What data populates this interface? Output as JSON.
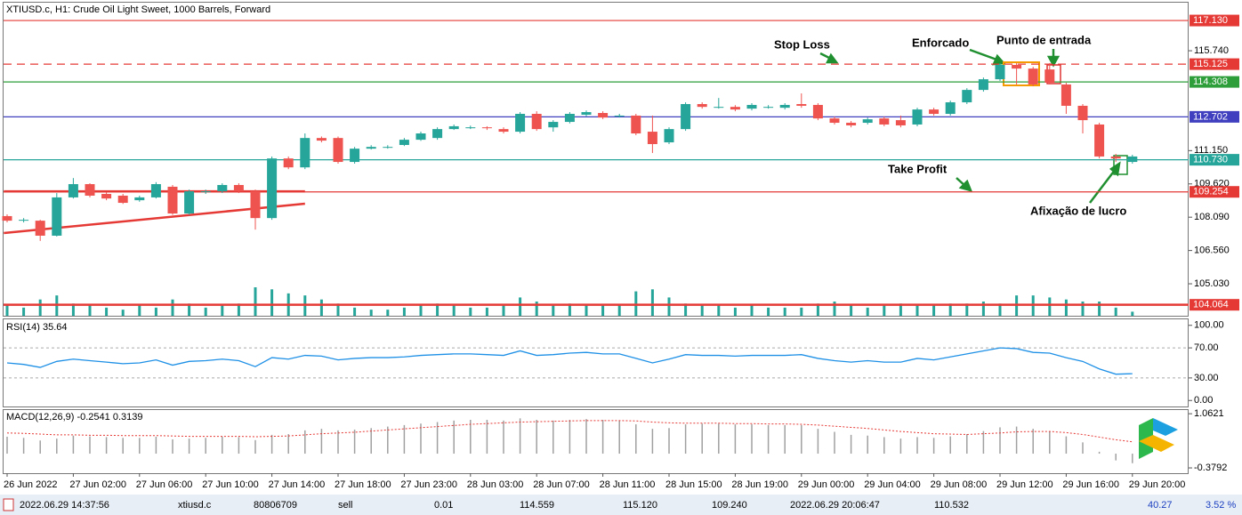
{
  "chart_data": [
    {
      "type": "candlestick",
      "title": "XTIUSD.c, H1:  Crude Oil Light Sweet, 1000 Barrels, Forward",
      "categories": [
        "26 Jun 2022",
        null,
        null,
        null,
        "27 Jun 02:00",
        null,
        null,
        null,
        "27 Jun 06:00",
        null,
        null,
        null,
        "27 Jun 10:00",
        null,
        null,
        null,
        "27 Jun 14:00",
        null,
        null,
        null,
        "27 Jun 18:00",
        null,
        null,
        null,
        "27 Jun 23:00",
        null,
        null,
        null,
        "28 Jun 03:00",
        null,
        null,
        null,
        "28 Jun 07:00",
        null,
        null,
        null,
        "28 Jun 11:00",
        null,
        null,
        null,
        "28 Jun 15:00",
        null,
        null,
        null,
        "28 Jun 19:00",
        null,
        null,
        null,
        "29 Jun 00:00",
        null,
        null,
        null,
        "29 Jun 04:00",
        null,
        null,
        null,
        "29 Jun 08:00",
        null,
        null,
        null,
        "29 Jun 12:00",
        null,
        null,
        null,
        "29 Jun 16:00",
        null,
        null,
        null,
        "29 Jun 20:00"
      ],
      "open": [
        108.14,
        107.93,
        107.93,
        107.24,
        109.0,
        109.61,
        109.16,
        109.08,
        108.87,
        109.0,
        109.49,
        108.26,
        109.24,
        109.28,
        109.57,
        109.28,
        108.05,
        110.79,
        110.38,
        111.73,
        111.73,
        110.63,
        111.24,
        111.32,
        111.41,
        111.65,
        111.73,
        112.14,
        112.22,
        112.22,
        112.14,
        112.02,
        112.84,
        112.22,
        112.47,
        112.8,
        112.88,
        112.76,
        112.76,
        112.02,
        111.53,
        112.14,
        113.29,
        113.16,
        113.16,
        113.08,
        113.16,
        113.12,
        113.29,
        113.25,
        112.63,
        112.43,
        112.43,
        112.63,
        112.55,
        112.35,
        113.04,
        112.84,
        113.37,
        113.94,
        114.43,
        115.09,
        114.92,
        114.88,
        114.19,
        113.21,
        112.35,
        110.88,
        110.63
      ],
      "high": [
        108.22,
        108.05,
        107.97,
        109.2,
        109.89,
        109.65,
        109.24,
        109.16,
        109.08,
        109.7,
        109.57,
        109.36,
        109.36,
        109.65,
        109.65,
        109.36,
        110.88,
        110.88,
        111.94,
        111.8,
        111.8,
        111.32,
        111.4,
        111.4,
        111.73,
        112.02,
        112.22,
        112.35,
        112.3,
        112.27,
        112.22,
        112.92,
        112.96,
        112.55,
        112.92,
        113.0,
        112.96,
        112.84,
        112.84,
        112.76,
        112.22,
        113.37,
        113.37,
        113.57,
        113.24,
        113.33,
        113.24,
        113.33,
        113.78,
        113.33,
        112.71,
        112.51,
        112.67,
        112.71,
        112.76,
        113.12,
        113.12,
        113.45,
        114.02,
        114.51,
        115.17,
        115.17,
        115.0,
        115.17,
        114.27,
        113.29,
        112.43,
        111.0,
        110.96
      ],
      "low": [
        107.85,
        107.85,
        107.0,
        107.2,
        108.95,
        109.0,
        108.87,
        108.7,
        108.8,
        108.95,
        108.2,
        108.2,
        109.16,
        109.2,
        109.2,
        107.52,
        107.97,
        110.3,
        110.3,
        111.53,
        110.55,
        110.55,
        111.2,
        111.24,
        111.36,
        111.6,
        111.65,
        112.1,
        112.14,
        112.1,
        111.94,
        111.94,
        112.06,
        112.02,
        112.4,
        112.72,
        112.6,
        112.67,
        111.86,
        111.04,
        111.45,
        112.06,
        113.08,
        113.08,
        112.96,
        113.0,
        113.08,
        113.04,
        113.12,
        112.55,
        112.35,
        112.22,
        112.35,
        112.27,
        112.22,
        112.27,
        112.76,
        112.76,
        113.29,
        113.86,
        114.35,
        114.19,
        114.11,
        114.19,
        112.84,
        111.94,
        110.79,
        110.63,
        110.55
      ],
      "close": [
        107.93,
        107.97,
        107.24,
        109.0,
        109.61,
        109.08,
        108.95,
        108.75,
        109.0,
        109.61,
        108.26,
        109.28,
        109.28,
        109.57,
        109.28,
        108.05,
        110.79,
        110.38,
        111.73,
        111.61,
        110.63,
        111.24,
        111.32,
        111.32,
        111.65,
        111.94,
        112.14,
        112.27,
        112.22,
        112.18,
        112.02,
        112.84,
        112.14,
        112.47,
        112.84,
        112.92,
        112.67,
        112.76,
        111.94,
        111.45,
        112.14,
        113.29,
        113.16,
        113.16,
        113.04,
        113.25,
        113.16,
        113.25,
        113.21,
        112.63,
        112.43,
        112.31,
        112.59,
        112.35,
        112.31,
        113.04,
        112.84,
        113.37,
        113.94,
        114.43,
        115.09,
        114.92,
        114.19,
        114.27,
        113.21,
        112.55,
        110.88,
        110.79,
        110.88
      ],
      "volume": [
        5,
        4,
        8,
        10,
        6,
        5,
        4,
        3,
        5,
        4,
        8,
        6,
        4,
        5,
        6,
        14,
        13,
        11,
        10,
        8,
        6,
        4,
        3,
        3,
        4,
        5,
        6,
        5,
        4,
        4,
        5,
        9,
        7,
        5,
        6,
        5,
        5,
        5,
        12,
        13,
        9,
        6,
        5,
        5,
        4,
        5,
        4,
        4,
        4,
        6,
        7,
        5,
        4,
        5,
        6,
        5,
        5,
        6,
        6,
        7,
        6,
        10,
        10,
        9,
        8,
        7,
        7,
        4,
        2
      ],
      "up_color": "#26a69a",
      "down_color": "#ef5350",
      "volume_color": "#26a69a",
      "ylim": [
        103.56,
        117.95
      ],
      "yticks": [
        {
          "value": 115.74,
          "label": "115.740"
        },
        {
          "value": 111.15,
          "label": "111.150"
        },
        {
          "value": 109.62,
          "label": "109.620"
        },
        {
          "value": 108.09,
          "label": "108.090"
        },
        {
          "value": 106.56,
          "label": "106.560"
        },
        {
          "value": 105.03,
          "label": "105.030"
        }
      ],
      "levels": [
        {
          "value": 117.13,
          "label": "117.130",
          "color": "#e53935",
          "style": "solid"
        },
        {
          "value": 115.125,
          "label": "115.125",
          "color": "#e53935",
          "style": "dashed"
        },
        {
          "value": 114.308,
          "label": "114.308",
          "color": "#2e9e3a",
          "style": "solid"
        },
        {
          "value": 112.702,
          "label": "112.702",
          "color": "#3f3fbf",
          "style": "solid"
        },
        {
          "value": 110.73,
          "label": "110.730",
          "color": "#26a69a",
          "style": "solid"
        },
        {
          "value": 109.254,
          "label": "109.254",
          "color": "#e53935",
          "style": "solid"
        },
        {
          "value": 104.064,
          "label": "104.064",
          "color": "#e53935",
          "style": "thick"
        }
      ],
      "trend_lines": [
        {
          "start": [
            -0.2,
            107.36
          ],
          "end": [
            18,
            108.71
          ],
          "color": "#e53935"
        },
        {
          "start": [
            -0.2,
            109.28
          ],
          "end": [
            18,
            109.28
          ],
          "color": "#e53935"
        }
      ],
      "annotations": [
        "Stop Loss",
        "Enforcado",
        "Punto de entrada",
        "Take Profit",
        "Afixação de lucro"
      ]
    },
    {
      "type": "line",
      "title": "RSI(14) 35.64",
      "color": "#1e90e6",
      "values": [
        50,
        48,
        44,
        52,
        55,
        53,
        51,
        49,
        50,
        54,
        47,
        52,
        53,
        55,
        53,
        45,
        57,
        55,
        60,
        59,
        54,
        56,
        57,
        57,
        58,
        60,
        61,
        62,
        62,
        61,
        60,
        66,
        60,
        61,
        63,
        64,
        62,
        62,
        56,
        50,
        55,
        61,
        60,
        60,
        59,
        60,
        60,
        60,
        61,
        56,
        53,
        51,
        53,
        51,
        51,
        56,
        54,
        58,
        62,
        66,
        70,
        69,
        64,
        63,
        57,
        52,
        42,
        35,
        35.64
      ],
      "ylim": [
        -8,
        108
      ],
      "levels": [
        30,
        70
      ],
      "yticks": [
        {
          "value": 100,
          "label": "100.00"
        },
        {
          "value": 70,
          "label": "70.00"
        },
        {
          "value": 30,
          "label": "30.00"
        },
        {
          "value": 0,
          "label": "0.00"
        }
      ]
    },
    {
      "type": "macd",
      "title": "MACD(12,26,9) -0.2541 0.3139",
      "color": "#a0a0a0",
      "signal_color": "#e53935",
      "values": [
        0.45,
        0.42,
        0.35,
        0.4,
        0.48,
        0.46,
        0.44,
        0.42,
        0.42,
        0.45,
        0.38,
        0.4,
        0.42,
        0.45,
        0.44,
        0.36,
        0.5,
        0.52,
        0.62,
        0.66,
        0.62,
        0.64,
        0.68,
        0.72,
        0.76,
        0.8,
        0.84,
        0.88,
        0.9,
        0.9,
        0.88,
        0.94,
        0.9,
        0.88,
        0.9,
        0.92,
        0.9,
        0.88,
        0.78,
        0.66,
        0.68,
        0.78,
        0.8,
        0.8,
        0.78,
        0.78,
        0.76,
        0.76,
        0.76,
        0.66,
        0.58,
        0.5,
        0.48,
        0.44,
        0.4,
        0.44,
        0.42,
        0.46,
        0.52,
        0.6,
        0.7,
        0.72,
        0.66,
        0.6,
        0.46,
        0.3,
        0.05,
        -0.18,
        -0.2541
      ],
      "signal": [
        0.55,
        0.54,
        0.52,
        0.5,
        0.5,
        0.49,
        0.49,
        0.48,
        0.48,
        0.48,
        0.47,
        0.46,
        0.46,
        0.46,
        0.46,
        0.45,
        0.46,
        0.47,
        0.5,
        0.53,
        0.55,
        0.57,
        0.6,
        0.63,
        0.66,
        0.69,
        0.72,
        0.75,
        0.78,
        0.8,
        0.82,
        0.84,
        0.85,
        0.86,
        0.87,
        0.88,
        0.88,
        0.88,
        0.87,
        0.84,
        0.82,
        0.81,
        0.81,
        0.81,
        0.8,
        0.8,
        0.79,
        0.79,
        0.78,
        0.76,
        0.73,
        0.7,
        0.67,
        0.63,
        0.59,
        0.56,
        0.53,
        0.52,
        0.51,
        0.53,
        0.55,
        0.58,
        0.59,
        0.59,
        0.56,
        0.51,
        0.44,
        0.37,
        0.3139
      ],
      "ylim": [
        -0.52,
        1.16
      ],
      "yticks": [
        1.0621,
        -0.3792
      ]
    }
  ],
  "status_bar": {
    "cells": [
      "2022.06.29 14:37:56",
      "xtiusd.c",
      "80806709",
      "sell",
      "0.01",
      "114.559",
      "115.120",
      "109.240",
      "2022.06.29 20:06:47",
      "110.532",
      "40.27",
      "3.52 %"
    ]
  }
}
